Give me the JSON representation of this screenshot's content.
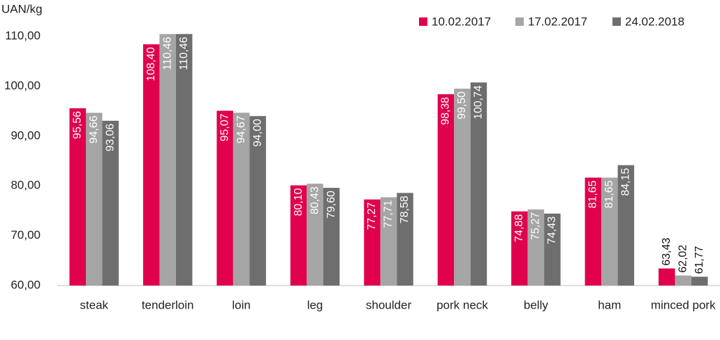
{
  "chart_data": {
    "type": "bar",
    "y_label": "UAN/kg",
    "categories": [
      "steak",
      "tenderloin",
      "loin",
      "leg",
      "shoulder",
      "pork neck",
      "belly",
      "ham",
      "minced pork"
    ],
    "series": [
      {
        "name": "10.02.2017",
        "color": "#e0004d",
        "values": [
          95.56,
          108.4,
          95.07,
          80.1,
          77.27,
          98.38,
          74.88,
          81.65,
          63.43
        ],
        "value_labels": [
          "95,56",
          "108,40",
          "95,07",
          "80,10",
          "77,27",
          "98,38",
          "74,88",
          "81,65",
          "63,43"
        ]
      },
      {
        "name": "17.02.2017",
        "color": "#a5a5a5",
        "values": [
          94.66,
          110.46,
          94.67,
          80.43,
          77.71,
          99.5,
          75.27,
          81.65,
          62.02
        ],
        "value_labels": [
          "94,66",
          "110,46",
          "94,67",
          "80,43",
          "77,71",
          "99,50",
          "75,27",
          "81,65",
          "62,02"
        ]
      },
      {
        "name": "24.02.2018",
        "color": "#6e6e6e",
        "values": [
          93.06,
          110.46,
          94.0,
          79.6,
          78.58,
          100.74,
          74.43,
          84.15,
          61.77
        ],
        "value_labels": [
          "93,06",
          "110,46",
          "94,00",
          "79,60",
          "78,58",
          "100,74",
          "74,43",
          "84,15",
          "61,77"
        ]
      }
    ],
    "ylim": [
      60,
      111
    ],
    "yticks": [
      {
        "value": 60,
        "label": "60,00"
      },
      {
        "value": 70,
        "label": "70,00"
      },
      {
        "value": 80,
        "label": "80,00"
      },
      {
        "value": 90,
        "label": "90,00"
      },
      {
        "value": 100,
        "label": "100,00"
      },
      {
        "value": 110,
        "label": "110,00"
      }
    ],
    "legend": "top-right"
  }
}
